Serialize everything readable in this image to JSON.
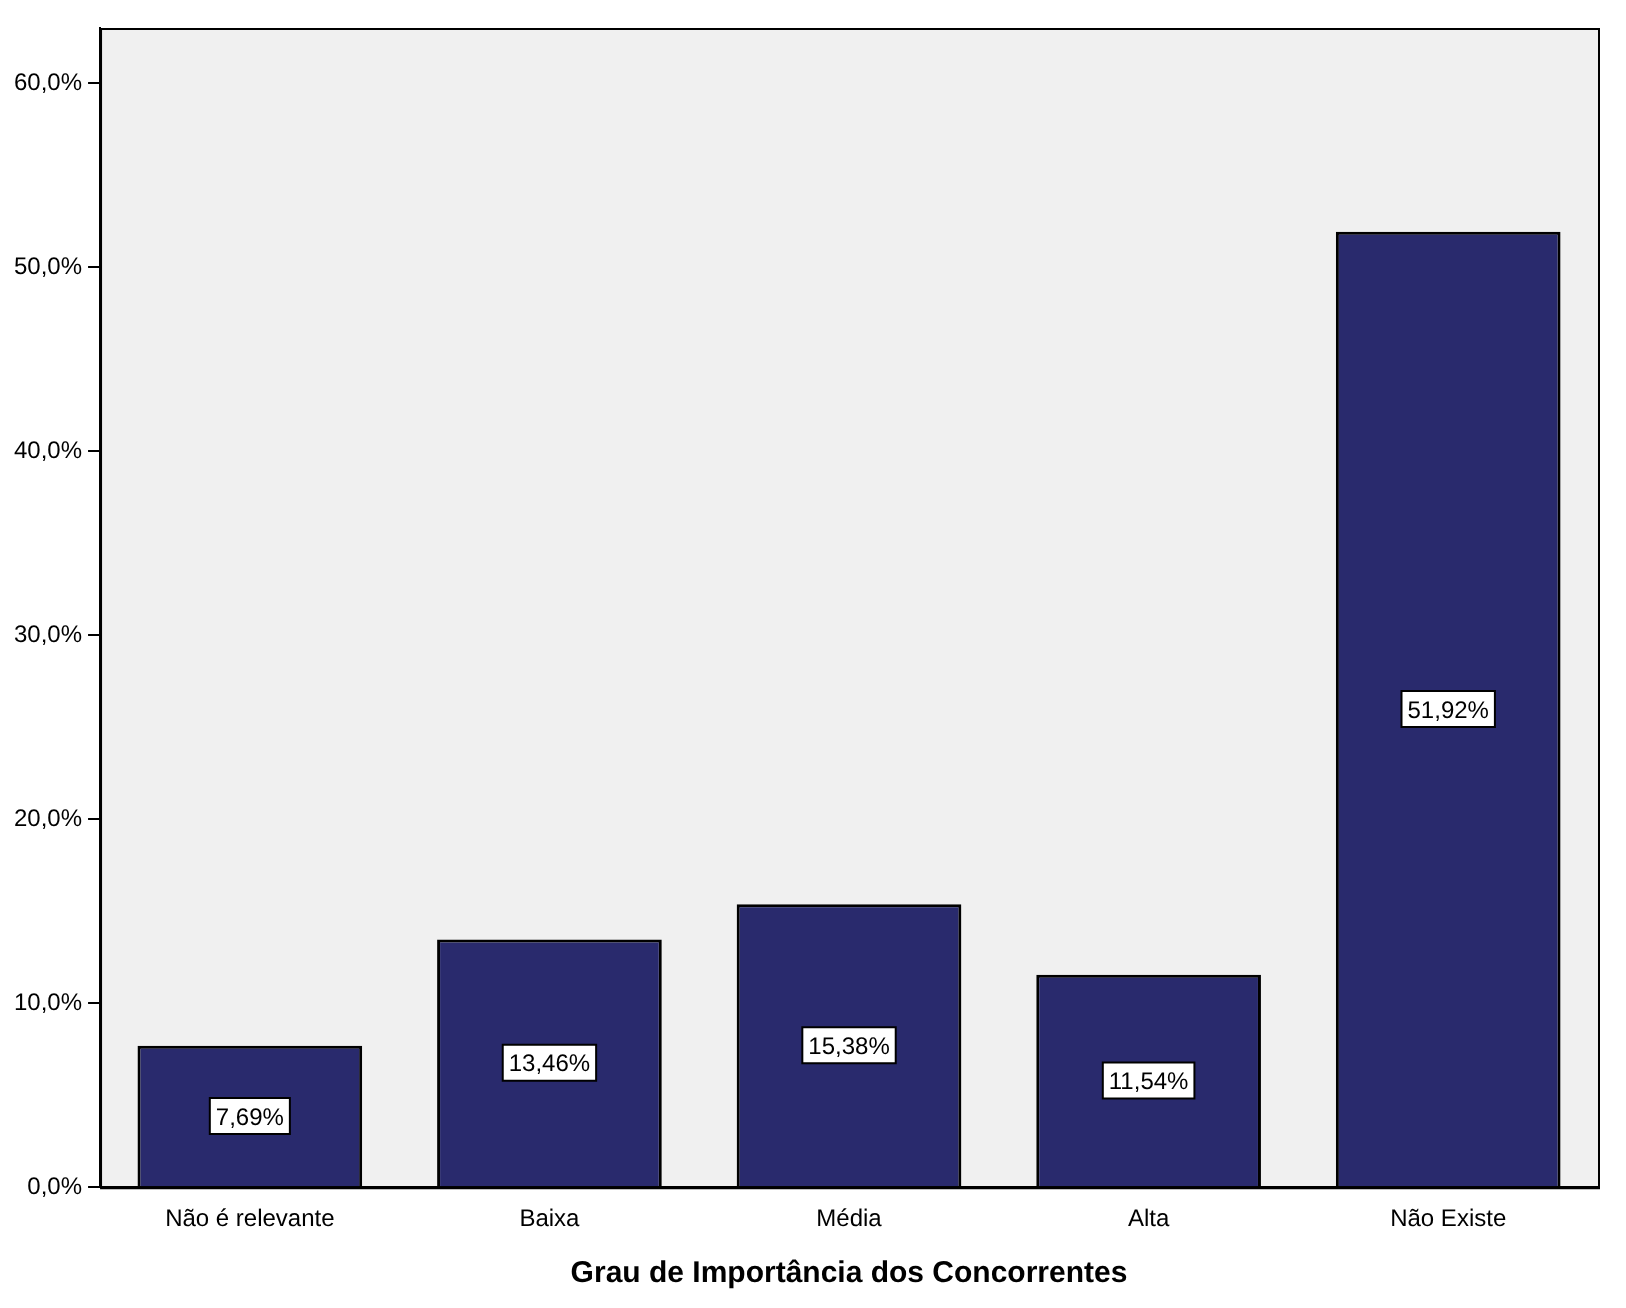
{
  "chart_data": {
    "type": "bar",
    "xlabel": "Grau de Importância dos Concorrentes",
    "categories": [
      "Não é relevante",
      "Baixa",
      "Média",
      "Alta",
      "Não Existe"
    ],
    "values": [
      7.69,
      13.46,
      15.38,
      11.54,
      51.92
    ],
    "value_labels": [
      "7,69%",
      "13,46%",
      "15,38%",
      "11,54%",
      "51,92%"
    ],
    "color": "#292a6d",
    "ylim": [
      0,
      63
    ],
    "yticks": [
      {
        "value": 0,
        "label": "0,0%"
      },
      {
        "value": 10,
        "label": "10,0%"
      },
      {
        "value": 20,
        "label": "20,0%"
      },
      {
        "value": 30,
        "label": "30,0%"
      },
      {
        "value": 40,
        "label": "40,0%"
      },
      {
        "value": 50,
        "label": "50,0%"
      },
      {
        "value": 60,
        "label": "60,0%"
      }
    ],
    "grid": false,
    "legend": false
  }
}
